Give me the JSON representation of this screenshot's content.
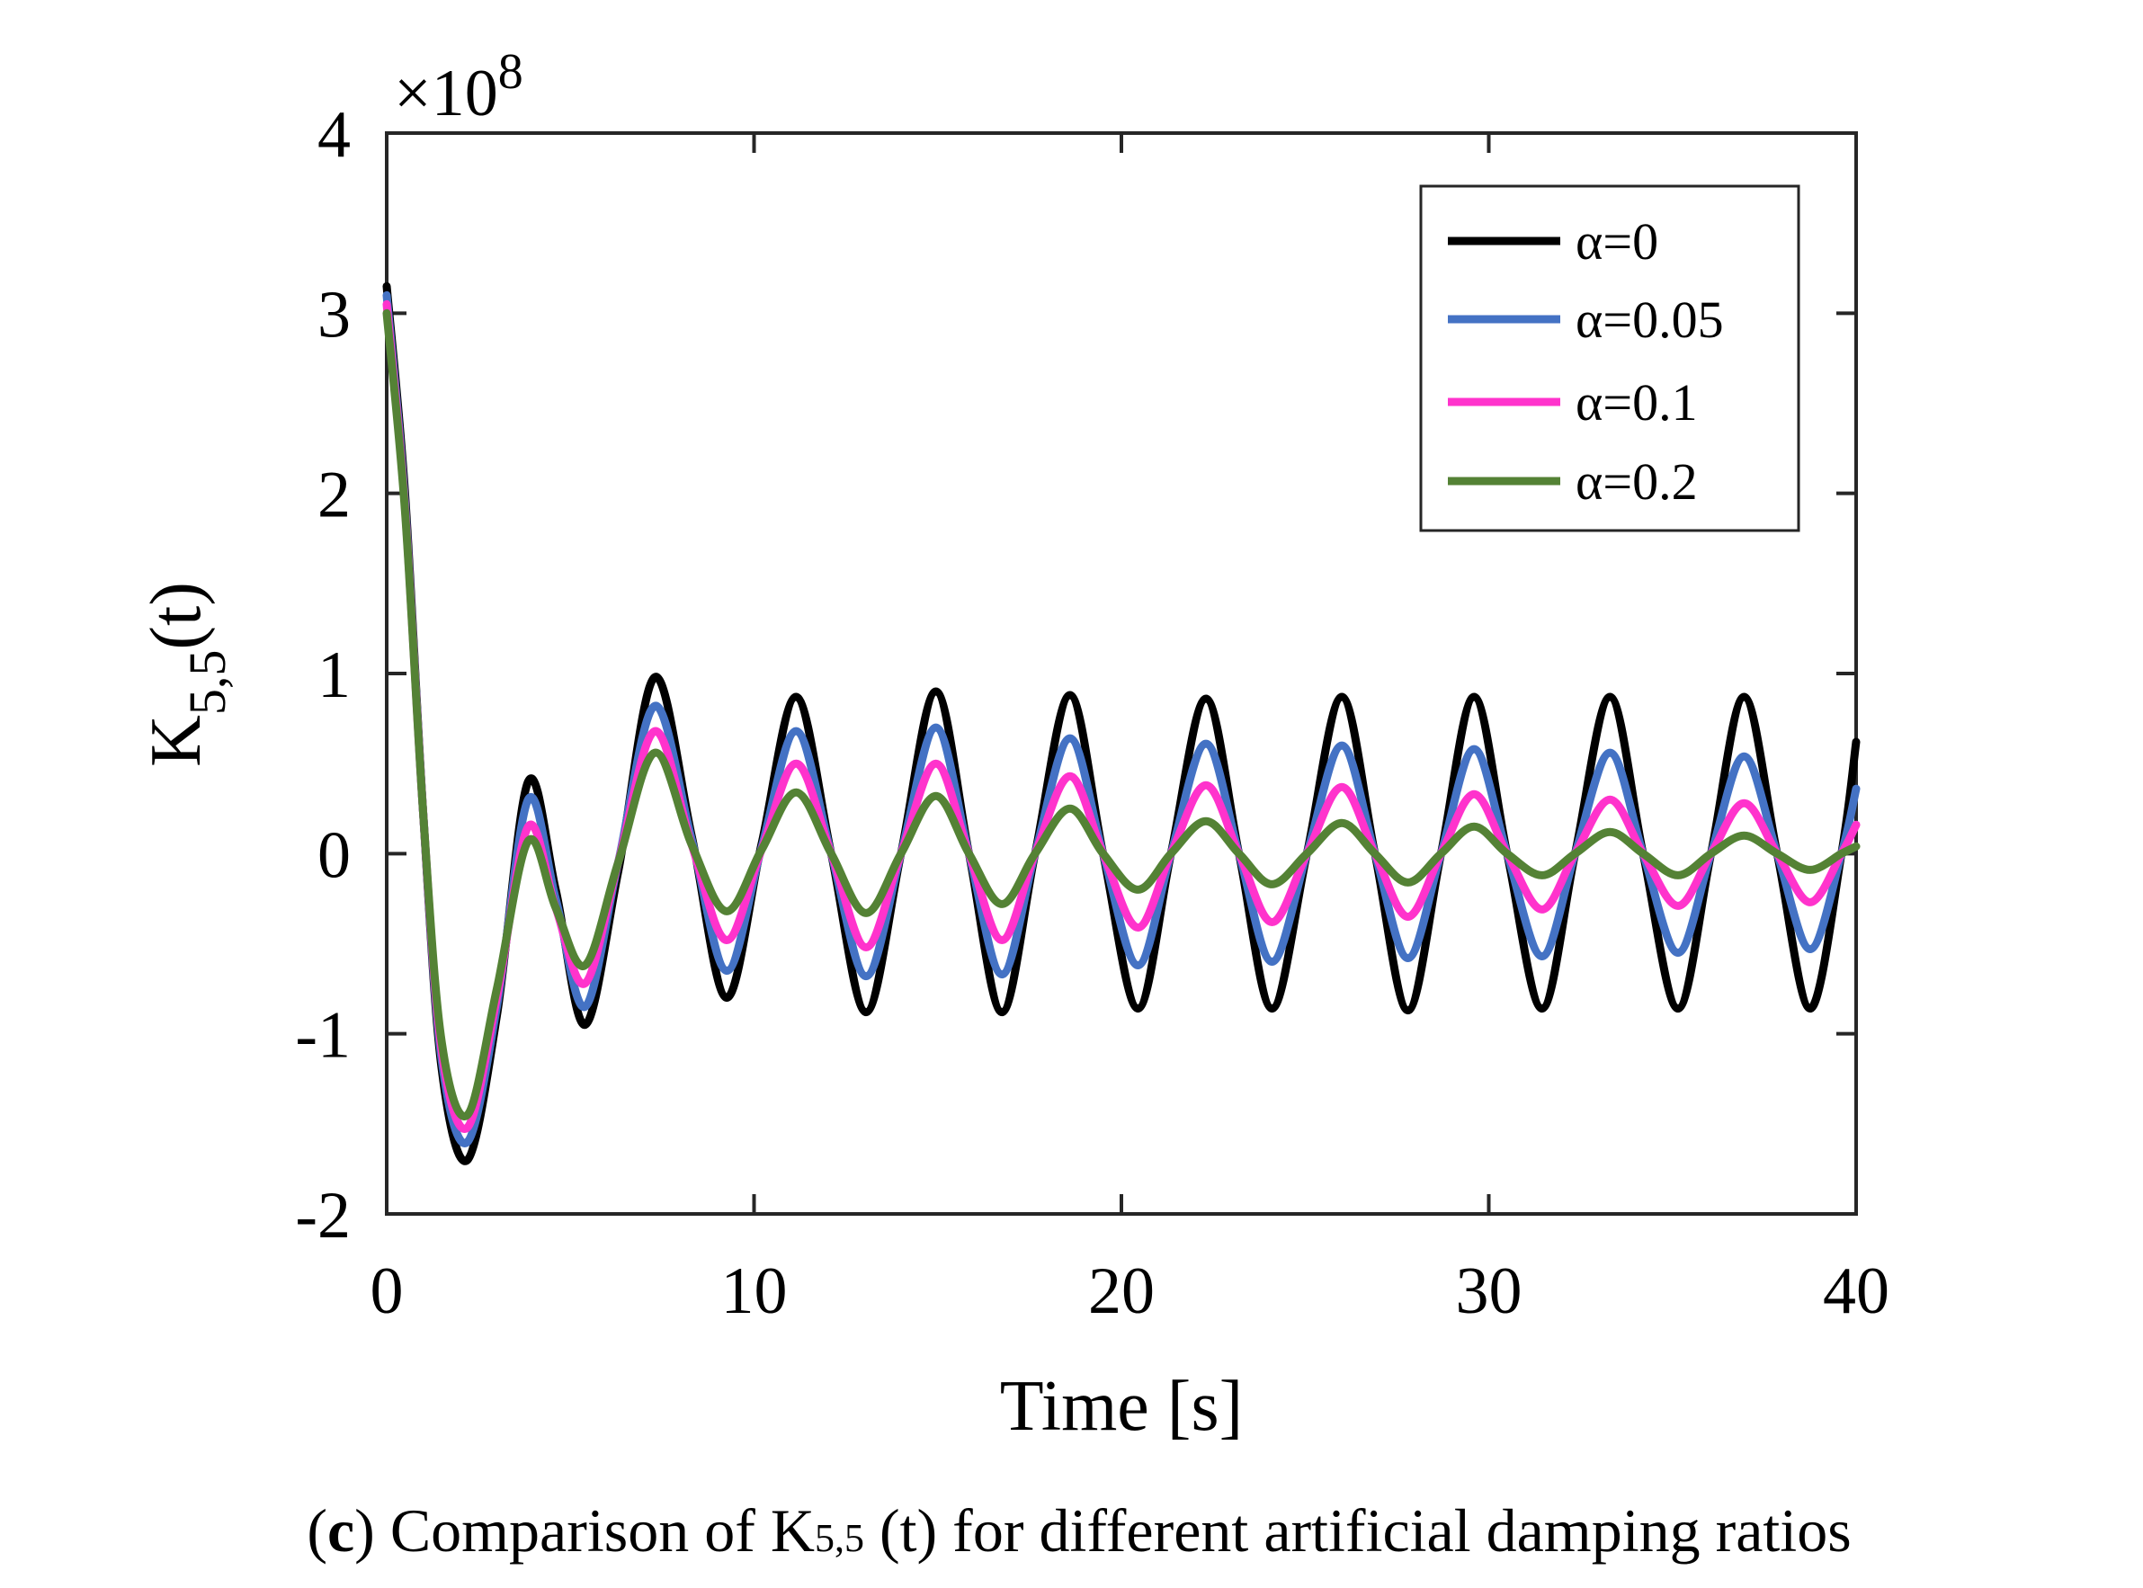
{
  "chart_data": {
    "type": "line",
    "xlabel": "Time [s]",
    "ylabel_main": "K",
    "ylabel_sub": "5,5",
    "ylabel_suffix": "(t)",
    "xlim": [
      0,
      40
    ],
    "ylim": [
      -2,
      4
    ],
    "y_exponent_prefix": "×10",
    "y_exponent_power": "8",
    "xticks": [
      0,
      10,
      20,
      30,
      40
    ],
    "xtick_labels": [
      "0",
      "10",
      "20",
      "30",
      "40"
    ],
    "yticks": [
      -2,
      -1,
      0,
      1,
      2,
      3,
      4
    ],
    "ytick_labels": [
      "-2",
      "-1",
      "0",
      "1",
      "2",
      "3",
      "4"
    ],
    "grid": false,
    "legend_position": "top-right",
    "series": [
      {
        "name": "α=0",
        "color": "#000000",
        "x": [
          0,
          0.5,
          1.0,
          1.5,
          2.2,
          3.0,
          3.85,
          4.6,
          5.4,
          6.3,
          7.3,
          8.3,
          9.25,
          10.2,
          11.15,
          12.1,
          13.05,
          14.0,
          14.95,
          15.85,
          16.75,
          17.65,
          18.6,
          19.5,
          20.45,
          21.35,
          22.3,
          23.2,
          24.1,
          25.05,
          26.0,
          26.9,
          27.8,
          28.7,
          29.6,
          30.5,
          31.45,
          32.35,
          33.3,
          34.2,
          35.15,
          36.05,
          36.95,
          37.85,
          38.75,
          39.6,
          40.0
        ],
        "y": [
          3.15,
          2.0,
          0.2,
          -1.2,
          -1.7,
          -0.9,
          0.4,
          -0.2,
          -0.95,
          -0.1,
          0.98,
          0.1,
          -0.8,
          0.05,
          0.87,
          0.0,
          -0.88,
          0.0,
          0.9,
          0.0,
          -0.88,
          0.0,
          0.88,
          0.0,
          -0.86,
          0.0,
          0.86,
          0.0,
          -0.86,
          0.0,
          0.87,
          0.0,
          -0.87,
          0.0,
          0.87,
          0.0,
          -0.86,
          0.0,
          0.87,
          0.0,
          -0.86,
          0.0,
          0.87,
          0.0,
          -0.86,
          0.0,
          0.62
        ]
      },
      {
        "name": "α=0.05",
        "color": "#4472C4",
        "x": [
          0,
          0.5,
          1.0,
          1.5,
          2.2,
          3.0,
          3.85,
          4.6,
          5.4,
          6.3,
          7.3,
          8.3,
          9.25,
          10.2,
          11.15,
          12.1,
          13.05,
          14.0,
          14.95,
          15.85,
          16.75,
          17.65,
          18.6,
          19.5,
          20.45,
          21.35,
          22.3,
          23.2,
          24.1,
          25.05,
          26.0,
          26.9,
          27.8,
          28.7,
          29.6,
          30.5,
          31.45,
          32.35,
          33.3,
          34.2,
          35.15,
          36.05,
          36.95,
          37.85,
          38.75,
          39.6,
          40.0
        ],
        "y": [
          3.1,
          1.95,
          0.2,
          -1.15,
          -1.6,
          -0.85,
          0.3,
          -0.25,
          -0.85,
          -0.05,
          0.82,
          0.08,
          -0.65,
          0.03,
          0.68,
          0.0,
          -0.68,
          0.0,
          0.7,
          0.0,
          -0.67,
          0.0,
          0.64,
          0.0,
          -0.62,
          0.0,
          0.61,
          0.0,
          -0.6,
          0.0,
          0.6,
          0.0,
          -0.58,
          0.0,
          0.58,
          0.0,
          -0.57,
          0.0,
          0.56,
          0.0,
          -0.55,
          0.0,
          0.54,
          0.0,
          -0.53,
          0.0,
          0.36
        ]
      },
      {
        "name": "α=0.1",
        "color": "#FF33CC",
        "x": [
          0,
          0.5,
          1.0,
          1.5,
          2.2,
          3.0,
          3.85,
          4.6,
          5.4,
          6.3,
          7.3,
          8.3,
          9.25,
          10.2,
          11.15,
          12.1,
          13.05,
          14.0,
          14.95,
          15.85,
          16.75,
          17.65,
          18.6,
          19.5,
          20.45,
          21.35,
          22.3,
          23.2,
          24.1,
          25.05,
          26.0,
          26.9,
          27.8,
          28.7,
          29.6,
          30.5,
          31.45,
          32.35,
          33.3,
          34.2,
          35.15,
          36.05,
          36.95,
          37.85,
          38.75,
          39.6,
          40.0
        ],
        "y": [
          3.05,
          1.92,
          0.2,
          -1.1,
          -1.52,
          -0.8,
          0.15,
          -0.3,
          -0.72,
          -0.05,
          0.68,
          0.05,
          -0.48,
          0.02,
          0.5,
          0.0,
          -0.52,
          0.0,
          0.5,
          0.0,
          -0.48,
          0.0,
          0.43,
          0.0,
          -0.41,
          0.0,
          0.38,
          0.0,
          -0.38,
          0.0,
          0.37,
          0.0,
          -0.35,
          0.0,
          0.33,
          0.0,
          -0.31,
          0.0,
          0.3,
          0.0,
          -0.29,
          0.0,
          0.28,
          0.0,
          -0.27,
          0.0,
          0.16
        ]
      },
      {
        "name": "α=0.2",
        "color": "#548235",
        "x": [
          0,
          0.5,
          1.0,
          1.5,
          2.2,
          3.0,
          3.85,
          4.6,
          5.4,
          6.3,
          7.3,
          8.3,
          9.25,
          10.2,
          11.15,
          12.1,
          13.05,
          14.0,
          14.95,
          15.85,
          16.75,
          17.65,
          18.6,
          19.5,
          20.45,
          21.35,
          22.3,
          23.2,
          24.1,
          25.05,
          26.0,
          26.9,
          27.8,
          28.7,
          29.6,
          30.5,
          31.45,
          32.35,
          33.3,
          34.2,
          35.15,
          36.05,
          36.95,
          37.85,
          38.75,
          39.6,
          40.0
        ],
        "y": [
          3.0,
          1.9,
          0.2,
          -1.05,
          -1.45,
          -0.75,
          0.07,
          -0.3,
          -0.62,
          -0.05,
          0.56,
          0.05,
          -0.32,
          0.02,
          0.34,
          0.0,
          -0.33,
          0.0,
          0.32,
          0.0,
          -0.28,
          0.0,
          0.25,
          0.0,
          -0.2,
          0.0,
          0.18,
          0.0,
          -0.17,
          0.0,
          0.17,
          0.0,
          -0.16,
          0.0,
          0.15,
          0.0,
          -0.12,
          0.0,
          0.12,
          0.0,
          -0.12,
          0.0,
          0.1,
          0.0,
          -0.09,
          0.0,
          0.04
        ]
      }
    ]
  },
  "caption": {
    "open_paren": "(",
    "letter": "c",
    "close_paren": ")",
    "text_before_sub": " Comparison of K",
    "sub": "5,5",
    "text_after_sub": " (t) for different artificial damping ratios"
  }
}
